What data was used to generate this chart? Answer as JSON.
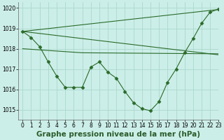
{
  "title": "Graphe pression niveau de la mer (hPa)",
  "bg_color": "#cceee8",
  "grid_color": "#aad8cc",
  "line_color": "#2a6b2a",
  "xlim": [
    -0.5,
    23
  ],
  "ylim": [
    1014.5,
    1020.3
  ],
  "yticks": [
    1015,
    1016,
    1017,
    1018,
    1019,
    1020
  ],
  "xticks": [
    0,
    1,
    2,
    3,
    4,
    5,
    6,
    7,
    8,
    9,
    10,
    11,
    12,
    13,
    14,
    15,
    16,
    17,
    18,
    19,
    20,
    21,
    22,
    23
  ],
  "line1_x": [
    0,
    23
  ],
  "line1_y": [
    1018.85,
    1019.93
  ],
  "line2_x": [
    0,
    23
  ],
  "line2_y": [
    1018.85,
    1017.7
  ],
  "line3_x": [
    0,
    7,
    23
  ],
  "line3_y": [
    1018.0,
    1017.8,
    1017.75
  ],
  "curve_x": [
    0,
    1,
    2,
    3,
    4,
    5,
    6,
    7,
    8,
    9,
    10,
    11,
    12,
    13,
    14,
    15,
    16,
    17,
    18,
    19,
    20,
    21,
    22,
    23
  ],
  "curve_y": [
    1018.85,
    1018.55,
    1018.1,
    1017.35,
    1016.65,
    1016.1,
    1016.1,
    1016.1,
    1017.1,
    1017.35,
    1016.85,
    1016.55,
    1015.9,
    1015.35,
    1015.05,
    1014.95,
    1015.4,
    1016.35,
    1017.0,
    1017.8,
    1018.5,
    1019.25,
    1019.8,
    1019.95
  ],
  "marker": "D",
  "marker_size": 2.5,
  "title_fontsize": 7.5,
  "tick_fontsize": 5.5
}
